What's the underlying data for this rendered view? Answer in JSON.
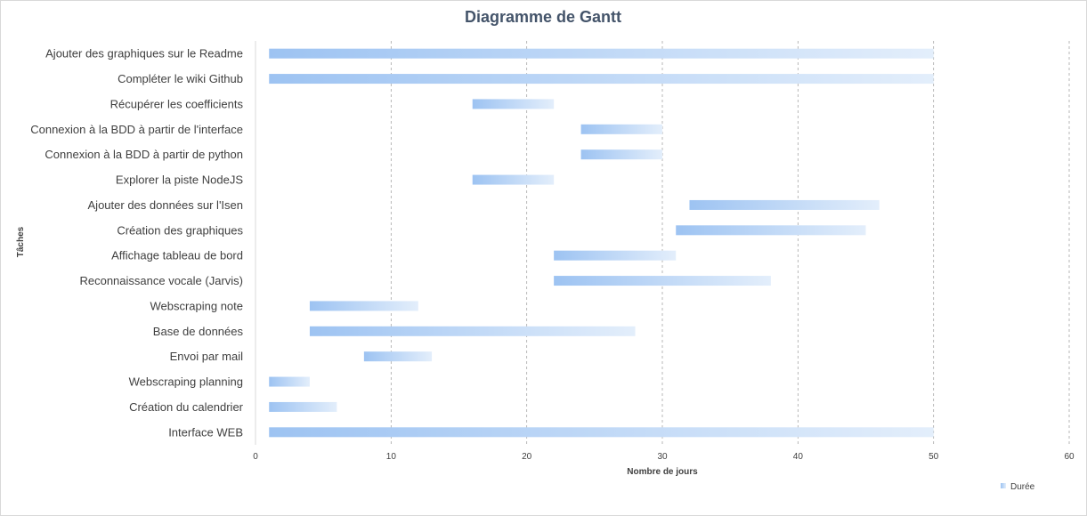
{
  "chart_data": {
    "type": "bar",
    "orientation": "horizontal",
    "stacked_gantt": true,
    "title": "Diagramme de Gantt",
    "xlabel": "Nombre de jours",
    "ylabel": "Tâches",
    "xlim": [
      0,
      60
    ],
    "xticks": [
      "0",
      "10",
      "20",
      "30",
      "40",
      "50",
      "60"
    ],
    "grid": "vertical-dashed",
    "legend_position": "bottom-right",
    "categories": [
      "Ajouter des graphiques sur le Readme",
      "Compléter le wiki Github",
      "Récupérer les coefficients",
      "Connexion à la BDD à partir de l'interface",
      "Connexion à la BDD à partir de python",
      "Explorer la piste NodeJS",
      "Ajouter des données sur l'Isen",
      "Création des graphiques",
      "Affichage tableau de bord",
      "Reconnaissance vocale (Jarvis)",
      "Webscraping note",
      "Base de données",
      "Envoi par mail",
      "Webscraping planning",
      "Création du calendrier",
      "Interface WEB"
    ],
    "start": [
      1,
      1,
      16,
      24,
      24,
      16,
      32,
      31,
      22,
      22,
      4,
      4,
      8,
      1,
      1,
      1
    ],
    "series": [
      {
        "name": "Durée",
        "values": [
          49,
          49,
          6,
          6,
          6,
          6,
          14,
          14,
          9,
          16,
          8,
          24,
          5,
          3,
          5,
          49
        ]
      }
    ],
    "colors": {
      "bar_start": "#9dc3f2",
      "bar_end": "#e3eefb",
      "grid": "#a6a6a6",
      "axis": "#d9d9d9"
    }
  }
}
